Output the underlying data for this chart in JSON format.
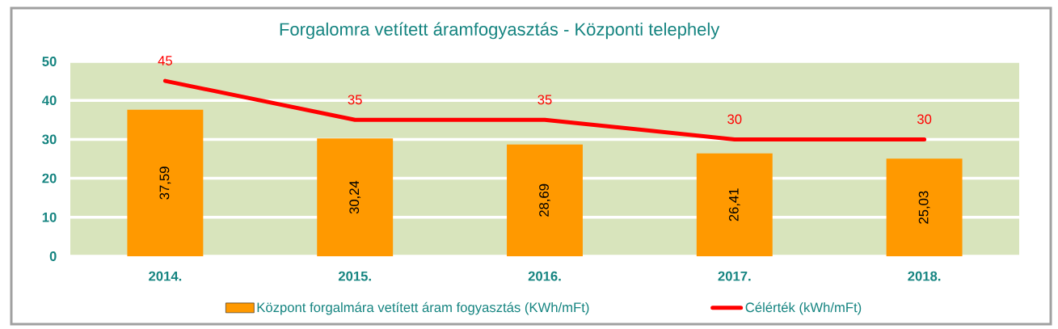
{
  "chart_data": {
    "type": "bar",
    "title": "Forgalomra vetített áramfogyasztás - Központi telephely",
    "categories": [
      "2014.",
      "2015.",
      "2016.",
      "2017.",
      "2018."
    ],
    "series": [
      {
        "name": "Központ forgalmára vetített áram fogyasztás (KWh/mFt)",
        "color": "#ff9900",
        "values": [
          37.59,
          30.24,
          28.69,
          26.41,
          25.03
        ],
        "value_labels": [
          "37,59",
          "30,24",
          "28,69",
          "26,41",
          "25,03"
        ]
      },
      {
        "name": "Célérték (kWh/mFt)",
        "type": "line",
        "color": "#ff0000",
        "values": [
          45,
          35,
          35,
          30,
          30
        ],
        "value_labels": [
          "45",
          "35",
          "35",
          "30",
          "30"
        ]
      }
    ],
    "ylim": [
      0,
      50
    ],
    "yticks": [
      0,
      10,
      20,
      30,
      40,
      50
    ],
    "grid": "y",
    "legend": "bottom",
    "marker": "none",
    "line_style": "solid"
  }
}
